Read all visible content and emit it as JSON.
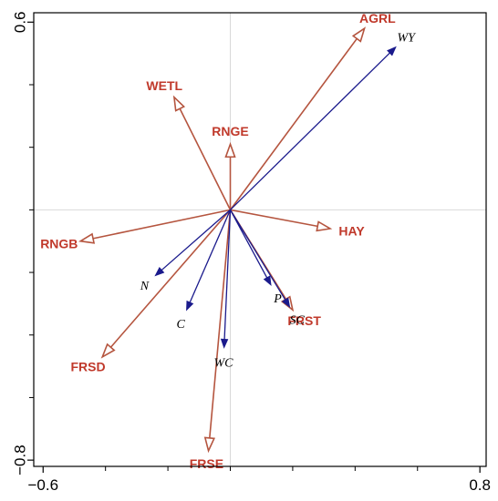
{
  "colors": {
    "env_arrow": "#b5553f",
    "env_label": "#c0392b",
    "resp_arrow": "#1a1a8c",
    "frame": "#000000",
    "refline": "#d9d9d9"
  },
  "chart_data": {
    "type": "biplot",
    "title": "",
    "xlabel": "",
    "ylabel": "",
    "xlim": [
      -0.63,
      0.82
    ],
    "ylim": [
      -0.82,
      0.63
    ],
    "x_ticks": [
      {
        "value": -0.6,
        "label": "−0.6"
      },
      {
        "value": 0.8,
        "label": "0.8"
      }
    ],
    "y_ticks": [
      {
        "value": 0.6,
        "label": "0.6"
      },
      {
        "value": -0.8,
        "label": "−0.8"
      }
    ],
    "x_minor_ticks": [
      -0.4,
      -0.2,
      0.0,
      0.2,
      0.4,
      0.6
    ],
    "y_minor_ticks": [
      0.4,
      0.2,
      0.0,
      -0.2,
      -0.4,
      -0.6
    ],
    "reference_lines": {
      "x": 0,
      "y": 0
    },
    "grid": false,
    "environmental_variables": [
      {
        "name": "AGRL",
        "x": 0.43,
        "y": 0.58
      },
      {
        "name": "WETL",
        "x": -0.18,
        "y": 0.36
      },
      {
        "name": "RNGE",
        "x": 0.0,
        "y": 0.21
      },
      {
        "name": "HAY",
        "x": 0.32,
        "y": -0.06
      },
      {
        "name": "RNGB",
        "x": -0.48,
        "y": -0.1
      },
      {
        "name": "FRST",
        "x": 0.2,
        "y": -0.32
      },
      {
        "name": "FRSD",
        "x": -0.41,
        "y": -0.47
      },
      {
        "name": "FRSE",
        "x": -0.07,
        "y": -0.77
      }
    ],
    "response_variables": [
      {
        "name": "WY",
        "x": 0.53,
        "y": 0.52
      },
      {
        "name": "P",
        "x": 0.13,
        "y": -0.24
      },
      {
        "name": "SC",
        "x": 0.19,
        "y": -0.31
      },
      {
        "name": "N",
        "x": -0.24,
        "y": -0.21
      },
      {
        "name": "C",
        "x": -0.14,
        "y": -0.32
      },
      {
        "name": "WC",
        "x": -0.02,
        "y": -0.44
      }
    ]
  }
}
